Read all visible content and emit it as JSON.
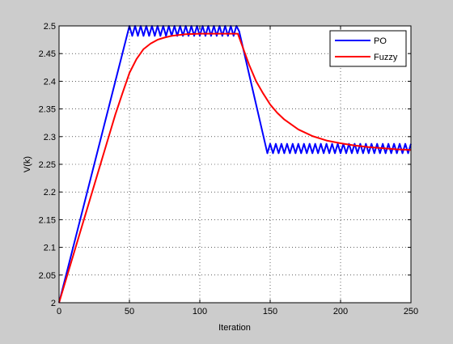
{
  "chart_data": {
    "type": "line",
    "title": "",
    "xlabel": "Iteration",
    "ylabel": "V(k)",
    "xlim": [
      0,
      250
    ],
    "ylim": [
      2,
      2.5
    ],
    "xticks": [
      0,
      50,
      100,
      150,
      200,
      250
    ],
    "yticks": [
      2,
      2.05,
      2.1,
      2.15,
      2.2,
      2.25,
      2.3,
      2.35,
      2.4,
      2.45,
      2.5
    ],
    "xtick_labels": [
      "0",
      "50",
      "100",
      "150",
      "200",
      "250"
    ],
    "ytick_labels": [
      "2",
      "2.05",
      "2.1",
      "2.15",
      "2.2",
      "2.25",
      "2.3",
      "2.35",
      "2.4",
      "2.45",
      "2.5"
    ],
    "grid": true,
    "legend_position": "top-right",
    "series": [
      {
        "name": "PO",
        "color": "#0000ff",
        "description": "ramps 2.0 to 2.5 over iterations 0-50, oscillates between ~2.48 and 2.5 until ~128, descends to ~2.27 by ~148, then oscillates between ~2.27 and ~2.285 through 250",
        "x": [
          0,
          50,
          52,
          54,
          56,
          58,
          60,
          62,
          64,
          66,
          68,
          70,
          72,
          74,
          76,
          78,
          80,
          82,
          84,
          86,
          88,
          90,
          92,
          94,
          96,
          98,
          100,
          102,
          104,
          106,
          108,
          110,
          112,
          114,
          116,
          118,
          120,
          122,
          124,
          126,
          128,
          148,
          150,
          152,
          154,
          156,
          158,
          160,
          162,
          164,
          166,
          168,
          170,
          172,
          174,
          176,
          178,
          180,
          182,
          184,
          186,
          188,
          190,
          192,
          194,
          196,
          198,
          200,
          202,
          204,
          206,
          208,
          210,
          212,
          214,
          216,
          218,
          220,
          222,
          224,
          226,
          228,
          230,
          232,
          234,
          236,
          238,
          240,
          242,
          244,
          246,
          248,
          250
        ],
        "y": [
          2.0,
          2.5,
          2.482,
          2.5,
          2.482,
          2.5,
          2.482,
          2.5,
          2.482,
          2.5,
          2.482,
          2.5,
          2.482,
          2.5,
          2.482,
          2.5,
          2.482,
          2.5,
          2.482,
          2.5,
          2.482,
          2.5,
          2.482,
          2.5,
          2.482,
          2.5,
          2.482,
          2.5,
          2.482,
          2.5,
          2.482,
          2.5,
          2.482,
          2.5,
          2.482,
          2.5,
          2.482,
          2.5,
          2.482,
          2.5,
          2.49,
          2.27,
          2.287,
          2.27,
          2.287,
          2.27,
          2.287,
          2.27,
          2.287,
          2.27,
          2.287,
          2.27,
          2.287,
          2.27,
          2.287,
          2.27,
          2.287,
          2.27,
          2.287,
          2.27,
          2.287,
          2.27,
          2.287,
          2.27,
          2.287,
          2.27,
          2.287,
          2.27,
          2.287,
          2.27,
          2.287,
          2.27,
          2.287,
          2.27,
          2.287,
          2.27,
          2.287,
          2.27,
          2.287,
          2.27,
          2.287,
          2.27,
          2.287,
          2.27,
          2.287,
          2.27,
          2.287,
          2.27,
          2.287,
          2.27,
          2.287,
          2.27,
          2.287
        ]
      },
      {
        "name": "Fuzzy",
        "color": "#ff0000",
        "x": [
          0,
          10,
          20,
          30,
          40,
          45,
          50,
          55,
          60,
          65,
          70,
          75,
          80,
          90,
          100,
          110,
          120,
          127,
          130,
          135,
          140,
          145,
          150,
          155,
          160,
          170,
          180,
          190,
          200,
          210,
          220,
          230,
          240,
          250
        ],
        "y": [
          2.0,
          2.085,
          2.17,
          2.255,
          2.34,
          2.378,
          2.415,
          2.44,
          2.458,
          2.468,
          2.475,
          2.479,
          2.482,
          2.485,
          2.486,
          2.486,
          2.486,
          2.486,
          2.465,
          2.43,
          2.4,
          2.378,
          2.358,
          2.343,
          2.331,
          2.313,
          2.301,
          2.293,
          2.288,
          2.284,
          2.281,
          2.279,
          2.277,
          2.276
        ]
      }
    ]
  }
}
